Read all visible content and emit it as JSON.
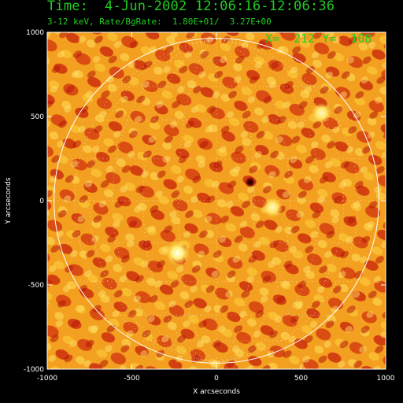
{
  "header": {
    "time_line": "Time:  4-Jun-2002 12:06:16-12:06:36",
    "band_line": "3-12 keV, Rate/BgRate:  1.80E+01/  3.27E+00",
    "cursor_readout": "X=  212 Y=  108"
  },
  "colors": {
    "text": "#22cc22",
    "background": "#000000",
    "limb": "#ffffff",
    "map_base": "#f3a020"
  },
  "chart_data": {
    "type": "heatmap",
    "title": "Time:  4-Jun-2002 12:06:16-12:06:36",
    "subtitle": "3-12 keV, Rate/BgRate:  1.80E+01/  3.27E+00",
    "xlabel": "X arcseconds",
    "ylabel": "Y arcseconds",
    "xlim": [
      -1000,
      1000
    ],
    "ylim": [
      -1000,
      1000
    ],
    "x_ticks": [
      -1000,
      -500,
      0,
      500,
      1000
    ],
    "y_ticks": [
      -1000,
      -500,
      0,
      500,
      1000
    ],
    "x_tick_labels": [
      "-1000",
      "-500",
      "0",
      "500",
      "1000"
    ],
    "y_tick_labels": [
      "-1000",
      "-500",
      "0",
      "500",
      "1000"
    ],
    "solar_limb_radius": 960,
    "grid": "heliographic dotted grid",
    "bright_sources": [
      {
        "x": -230,
        "y": -310
      },
      {
        "x": 330,
        "y": -40
      },
      {
        "x": 620,
        "y": 520
      }
    ],
    "dark_source": {
      "x": 200,
      "y": 110
    }
  }
}
